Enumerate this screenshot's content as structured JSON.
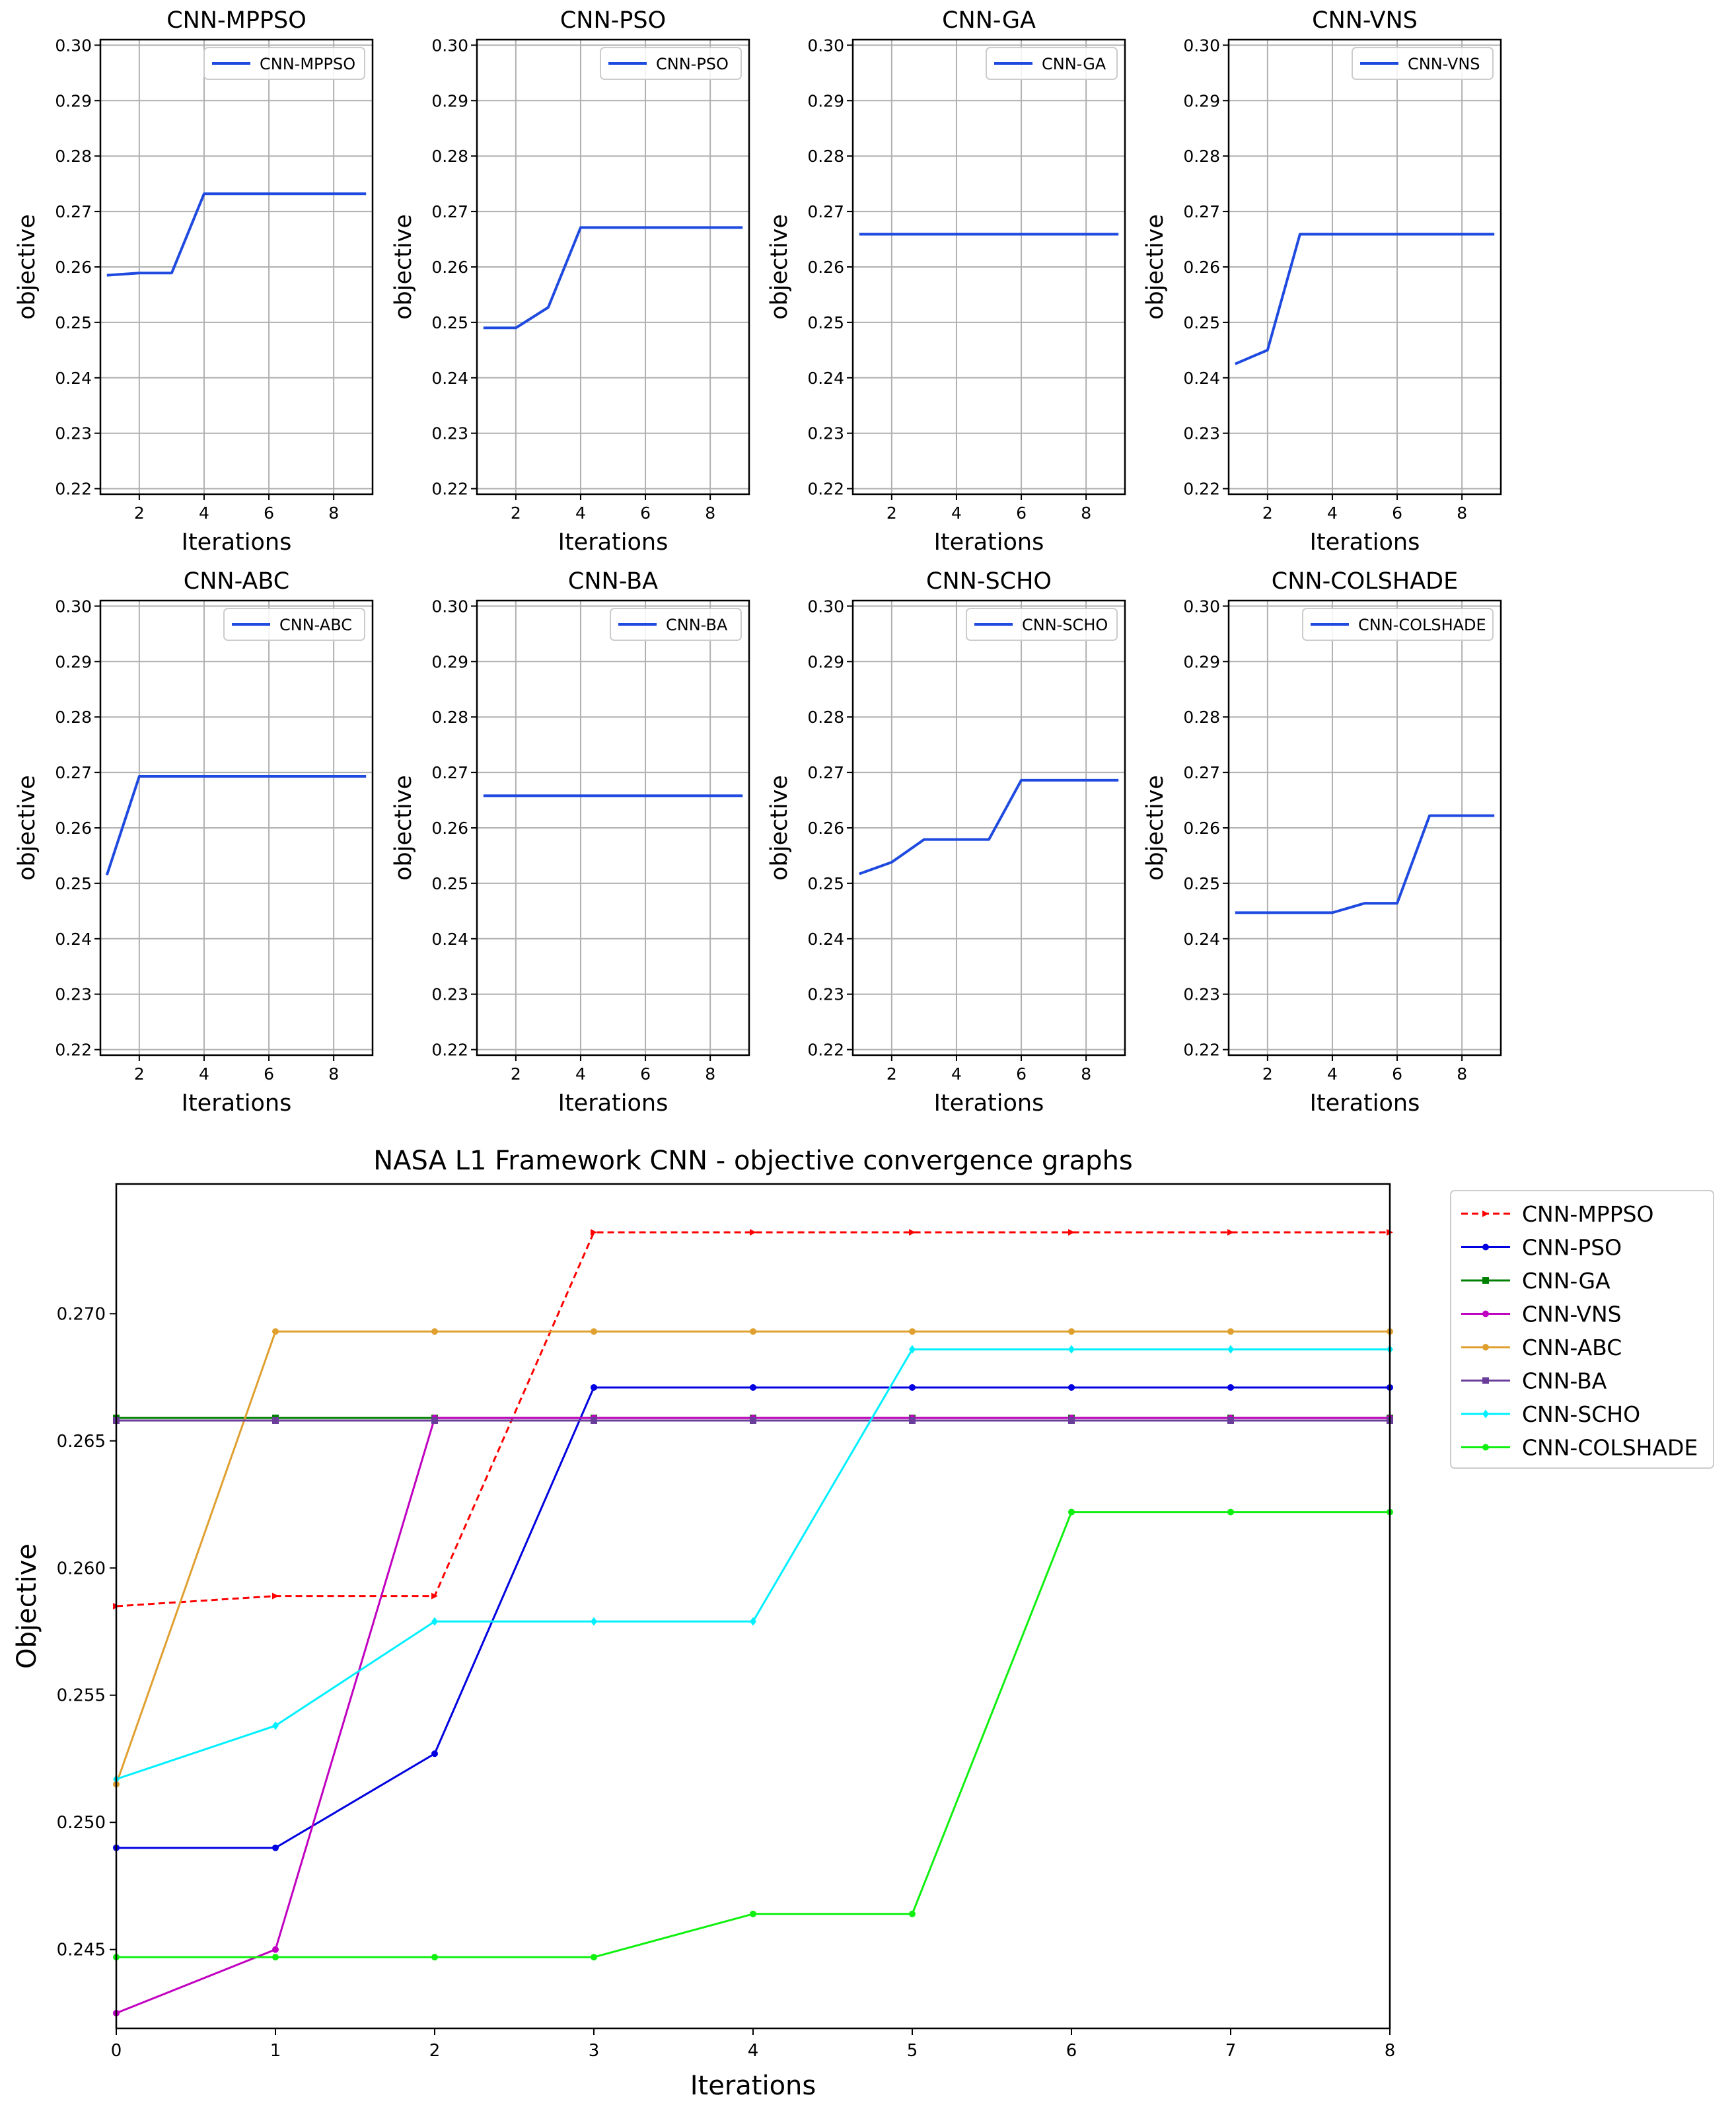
{
  "chart_data": [
    {
      "type": "line",
      "title": "CNN-MPPSO",
      "xlabel": "Iterations",
      "ylabel": "objective",
      "x": [
        1,
        2,
        3,
        4,
        5,
        6,
        7,
        8,
        9
      ],
      "xticks": [
        "2",
        "4",
        "6",
        "8"
      ],
      "yticks": [
        "0.22",
        "0.23",
        "0.24",
        "0.25",
        "0.26",
        "0.27",
        "0.28",
        "0.29",
        "0.30"
      ],
      "xlim": [
        0.8,
        9.2
      ],
      "ylim": [
        0.219,
        0.301
      ],
      "grid": true,
      "legend_position": "upper-right",
      "series": [
        {
          "name": "CNN-MPPSO",
          "color": "#1f4ae0",
          "values": [
            0.2585,
            0.2589,
            0.2589,
            0.2732,
            0.2732,
            0.2732,
            0.2732,
            0.2732,
            0.2732
          ]
        }
      ]
    },
    {
      "type": "line",
      "title": "CNN-PSO",
      "xlabel": "Iterations",
      "ylabel": "objective",
      "x": [
        1,
        2,
        3,
        4,
        5,
        6,
        7,
        8,
        9
      ],
      "xticks": [
        "2",
        "4",
        "6",
        "8"
      ],
      "yticks": [
        "0.22",
        "0.23",
        "0.24",
        "0.25",
        "0.26",
        "0.27",
        "0.28",
        "0.29",
        "0.30"
      ],
      "xlim": [
        0.8,
        9.2
      ],
      "ylim": [
        0.219,
        0.301
      ],
      "grid": true,
      "legend_position": "upper-right",
      "series": [
        {
          "name": "CNN-PSO",
          "color": "#1f4ae0",
          "values": [
            0.249,
            0.249,
            0.2527,
            0.2671,
            0.2671,
            0.2671,
            0.2671,
            0.2671,
            0.2671
          ]
        }
      ]
    },
    {
      "type": "line",
      "title": "CNN-GA",
      "xlabel": "Iterations",
      "ylabel": "objective",
      "x": [
        1,
        2,
        3,
        4,
        5,
        6,
        7,
        8,
        9
      ],
      "xticks": [
        "2",
        "4",
        "6",
        "8"
      ],
      "yticks": [
        "0.22",
        "0.23",
        "0.24",
        "0.25",
        "0.26",
        "0.27",
        "0.28",
        "0.29",
        "0.30"
      ],
      "xlim": [
        0.8,
        9.2
      ],
      "ylim": [
        0.219,
        0.301
      ],
      "grid": true,
      "legend_position": "upper-right",
      "series": [
        {
          "name": "CNN-GA",
          "color": "#1f4ae0",
          "values": [
            0.2659,
            0.2659,
            0.2659,
            0.2659,
            0.2659,
            0.2659,
            0.2659,
            0.2659,
            0.2659
          ]
        }
      ]
    },
    {
      "type": "line",
      "title": "CNN-VNS",
      "xlabel": "Iterations",
      "ylabel": "objective",
      "x": [
        1,
        2,
        3,
        4,
        5,
        6,
        7,
        8,
        9
      ],
      "xticks": [
        "2",
        "4",
        "6",
        "8"
      ],
      "yticks": [
        "0.22",
        "0.23",
        "0.24",
        "0.25",
        "0.26",
        "0.27",
        "0.28",
        "0.29",
        "0.30"
      ],
      "xlim": [
        0.8,
        9.2
      ],
      "ylim": [
        0.219,
        0.301
      ],
      "grid": true,
      "legend_position": "upper-right",
      "series": [
        {
          "name": "CNN-VNS",
          "color": "#1f4ae0",
          "values": [
            0.2425,
            0.245,
            0.2659,
            0.2659,
            0.2659,
            0.2659,
            0.2659,
            0.2659,
            0.2659
          ]
        }
      ]
    },
    {
      "type": "line",
      "title": "CNN-ABC",
      "xlabel": "Iterations",
      "ylabel": "objective",
      "x": [
        1,
        2,
        3,
        4,
        5,
        6,
        7,
        8,
        9
      ],
      "xticks": [
        "2",
        "4",
        "6",
        "8"
      ],
      "yticks": [
        "0.22",
        "0.23",
        "0.24",
        "0.25",
        "0.26",
        "0.27",
        "0.28",
        "0.29",
        "0.30"
      ],
      "xlim": [
        0.8,
        9.2
      ],
      "ylim": [
        0.219,
        0.301
      ],
      "grid": true,
      "legend_position": "upper-right",
      "series": [
        {
          "name": "CNN-ABC",
          "color": "#1f4ae0",
          "values": [
            0.2515,
            0.2693,
            0.2693,
            0.2693,
            0.2693,
            0.2693,
            0.2693,
            0.2693,
            0.2693
          ]
        }
      ]
    },
    {
      "type": "line",
      "title": "CNN-BA",
      "xlabel": "Iterations",
      "ylabel": "objective",
      "x": [
        1,
        2,
        3,
        4,
        5,
        6,
        7,
        8,
        9
      ],
      "xticks": [
        "2",
        "4",
        "6",
        "8"
      ],
      "yticks": [
        "0.22",
        "0.23",
        "0.24",
        "0.25",
        "0.26",
        "0.27",
        "0.28",
        "0.29",
        "0.30"
      ],
      "xlim": [
        0.8,
        9.2
      ],
      "ylim": [
        0.219,
        0.301
      ],
      "grid": true,
      "legend_position": "upper-right",
      "series": [
        {
          "name": "CNN-BA",
          "color": "#1f4ae0",
          "values": [
            0.2658,
            0.2658,
            0.2658,
            0.2658,
            0.2658,
            0.2658,
            0.2658,
            0.2658,
            0.2658
          ]
        }
      ]
    },
    {
      "type": "line",
      "title": "CNN-SCHO",
      "xlabel": "Iterations",
      "ylabel": "objective",
      "x": [
        1,
        2,
        3,
        4,
        5,
        6,
        7,
        8,
        9
      ],
      "xticks": [
        "2",
        "4",
        "6",
        "8"
      ],
      "yticks": [
        "0.22",
        "0.23",
        "0.24",
        "0.25",
        "0.26",
        "0.27",
        "0.28",
        "0.29",
        "0.30"
      ],
      "xlim": [
        0.8,
        9.2
      ],
      "ylim": [
        0.219,
        0.301
      ],
      "grid": true,
      "legend_position": "upper-right",
      "series": [
        {
          "name": "CNN-SCHO",
          "color": "#1f4ae0",
          "values": [
            0.2517,
            0.2538,
            0.2579,
            0.2579,
            0.2579,
            0.2686,
            0.2686,
            0.2686,
            0.2686
          ]
        }
      ]
    },
    {
      "type": "line",
      "title": "CNN-COLSHADE",
      "xlabel": "Iterations",
      "ylabel": "objective",
      "x": [
        1,
        2,
        3,
        4,
        5,
        6,
        7,
        8,
        9
      ],
      "xticks": [
        "2",
        "4",
        "6",
        "8"
      ],
      "yticks": [
        "0.22",
        "0.23",
        "0.24",
        "0.25",
        "0.26",
        "0.27",
        "0.28",
        "0.29",
        "0.30"
      ],
      "xlim": [
        0.8,
        9.2
      ],
      "ylim": [
        0.219,
        0.301
      ],
      "grid": true,
      "legend_position": "upper-right",
      "series": [
        {
          "name": "CNN-COLSHADE",
          "color": "#1f4ae0",
          "values": [
            0.2447,
            0.2447,
            0.2447,
            0.2447,
            0.2464,
            0.2464,
            0.2622,
            0.2622,
            0.2622
          ]
        }
      ]
    },
    {
      "type": "line",
      "title": "NASA L1 Framework CNN -  objective convergence graphs",
      "xlabel": "Iterations",
      "ylabel": "Objective",
      "x": [
        0,
        1,
        2,
        3,
        4,
        5,
        6,
        7,
        8
      ],
      "xticks": [
        "0",
        "1",
        "2",
        "3",
        "4",
        "5",
        "6",
        "7",
        "8"
      ],
      "yticks": [
        "0.245",
        "0.250",
        "0.255",
        "0.260",
        "0.265",
        "0.270"
      ],
      "xlim": [
        0,
        8
      ],
      "ylim": [
        0.2419,
        0.2751
      ],
      "grid": false,
      "legend_position": "outside-right",
      "series": [
        {
          "name": "CNN-MPPSO",
          "color": "#ff0000",
          "dashed": true,
          "marker": "triangle",
          "values": [
            0.2585,
            0.2589,
            0.2589,
            0.2732,
            0.2732,
            0.2732,
            0.2732,
            0.2732,
            0.2732
          ]
        },
        {
          "name": "CNN-PSO",
          "color": "#0000e0",
          "marker": "circle",
          "values": [
            0.249,
            0.249,
            0.2527,
            0.2671,
            0.2671,
            0.2671,
            0.2671,
            0.2671,
            0.2671
          ]
        },
        {
          "name": "CNN-GA",
          "color": "#008000",
          "marker": "square",
          "values": [
            0.2659,
            0.2659,
            0.2659,
            0.2659,
            0.2659,
            0.2659,
            0.2659,
            0.2659,
            0.2659
          ]
        },
        {
          "name": "CNN-VNS",
          "color": "#c000c0",
          "marker": "circle",
          "values": [
            0.2425,
            0.245,
            0.2659,
            0.2659,
            0.2659,
            0.2659,
            0.2659,
            0.2659,
            0.2659
          ]
        },
        {
          "name": "CNN-ABC",
          "color": "#e0a030",
          "marker": "circle",
          "values": [
            0.2515,
            0.2693,
            0.2693,
            0.2693,
            0.2693,
            0.2693,
            0.2693,
            0.2693,
            0.2693
          ]
        },
        {
          "name": "CNN-BA",
          "color": "#6a3d9a",
          "marker": "square",
          "values": [
            0.2658,
            0.2658,
            0.2658,
            0.2658,
            0.2658,
            0.2658,
            0.2658,
            0.2658,
            0.2658
          ]
        },
        {
          "name": "CNN-SCHO",
          "color": "#00f0ff",
          "marker": "diamond",
          "values": [
            0.2517,
            0.2538,
            0.2579,
            0.2579,
            0.2579,
            0.2686,
            0.2686,
            0.2686,
            0.2686
          ]
        },
        {
          "name": "CNN-COLSHADE",
          "color": "#10f010",
          "marker": "circle",
          "values": [
            0.2447,
            0.2447,
            0.2447,
            0.2447,
            0.2464,
            0.2464,
            0.2622,
            0.2622,
            0.2622
          ]
        }
      ]
    }
  ]
}
